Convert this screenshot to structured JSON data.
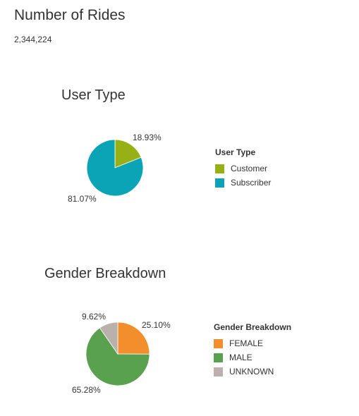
{
  "header": {
    "title": "Number of Rides",
    "value": "2,344,224"
  },
  "chart_data": [
    {
      "type": "pie",
      "title": "User Type",
      "legend_title": "User Type",
      "legend_placement": "right",
      "series": [
        {
          "name": "Customer",
          "value": 18.93,
          "label": "18.93%",
          "color": "#97b015"
        },
        {
          "name": "Subscriber",
          "value": 81.07,
          "label": "81.07%",
          "color": "#0ba4b6"
        }
      ]
    },
    {
      "type": "pie",
      "title": "Gender Breakdown",
      "legend_title": "Gender Breakdown",
      "legend_placement": "right",
      "series": [
        {
          "name": "FEMALE",
          "value": 25.1,
          "label": "25.10%",
          "color": "#f28e2b"
        },
        {
          "name": "MALE",
          "value": 65.28,
          "label": "65.28%",
          "color": "#59a14f"
        },
        {
          "name": "UNKNOWN",
          "value": 9.62,
          "label": "9.62%",
          "color": "#bab0ac"
        }
      ]
    }
  ]
}
